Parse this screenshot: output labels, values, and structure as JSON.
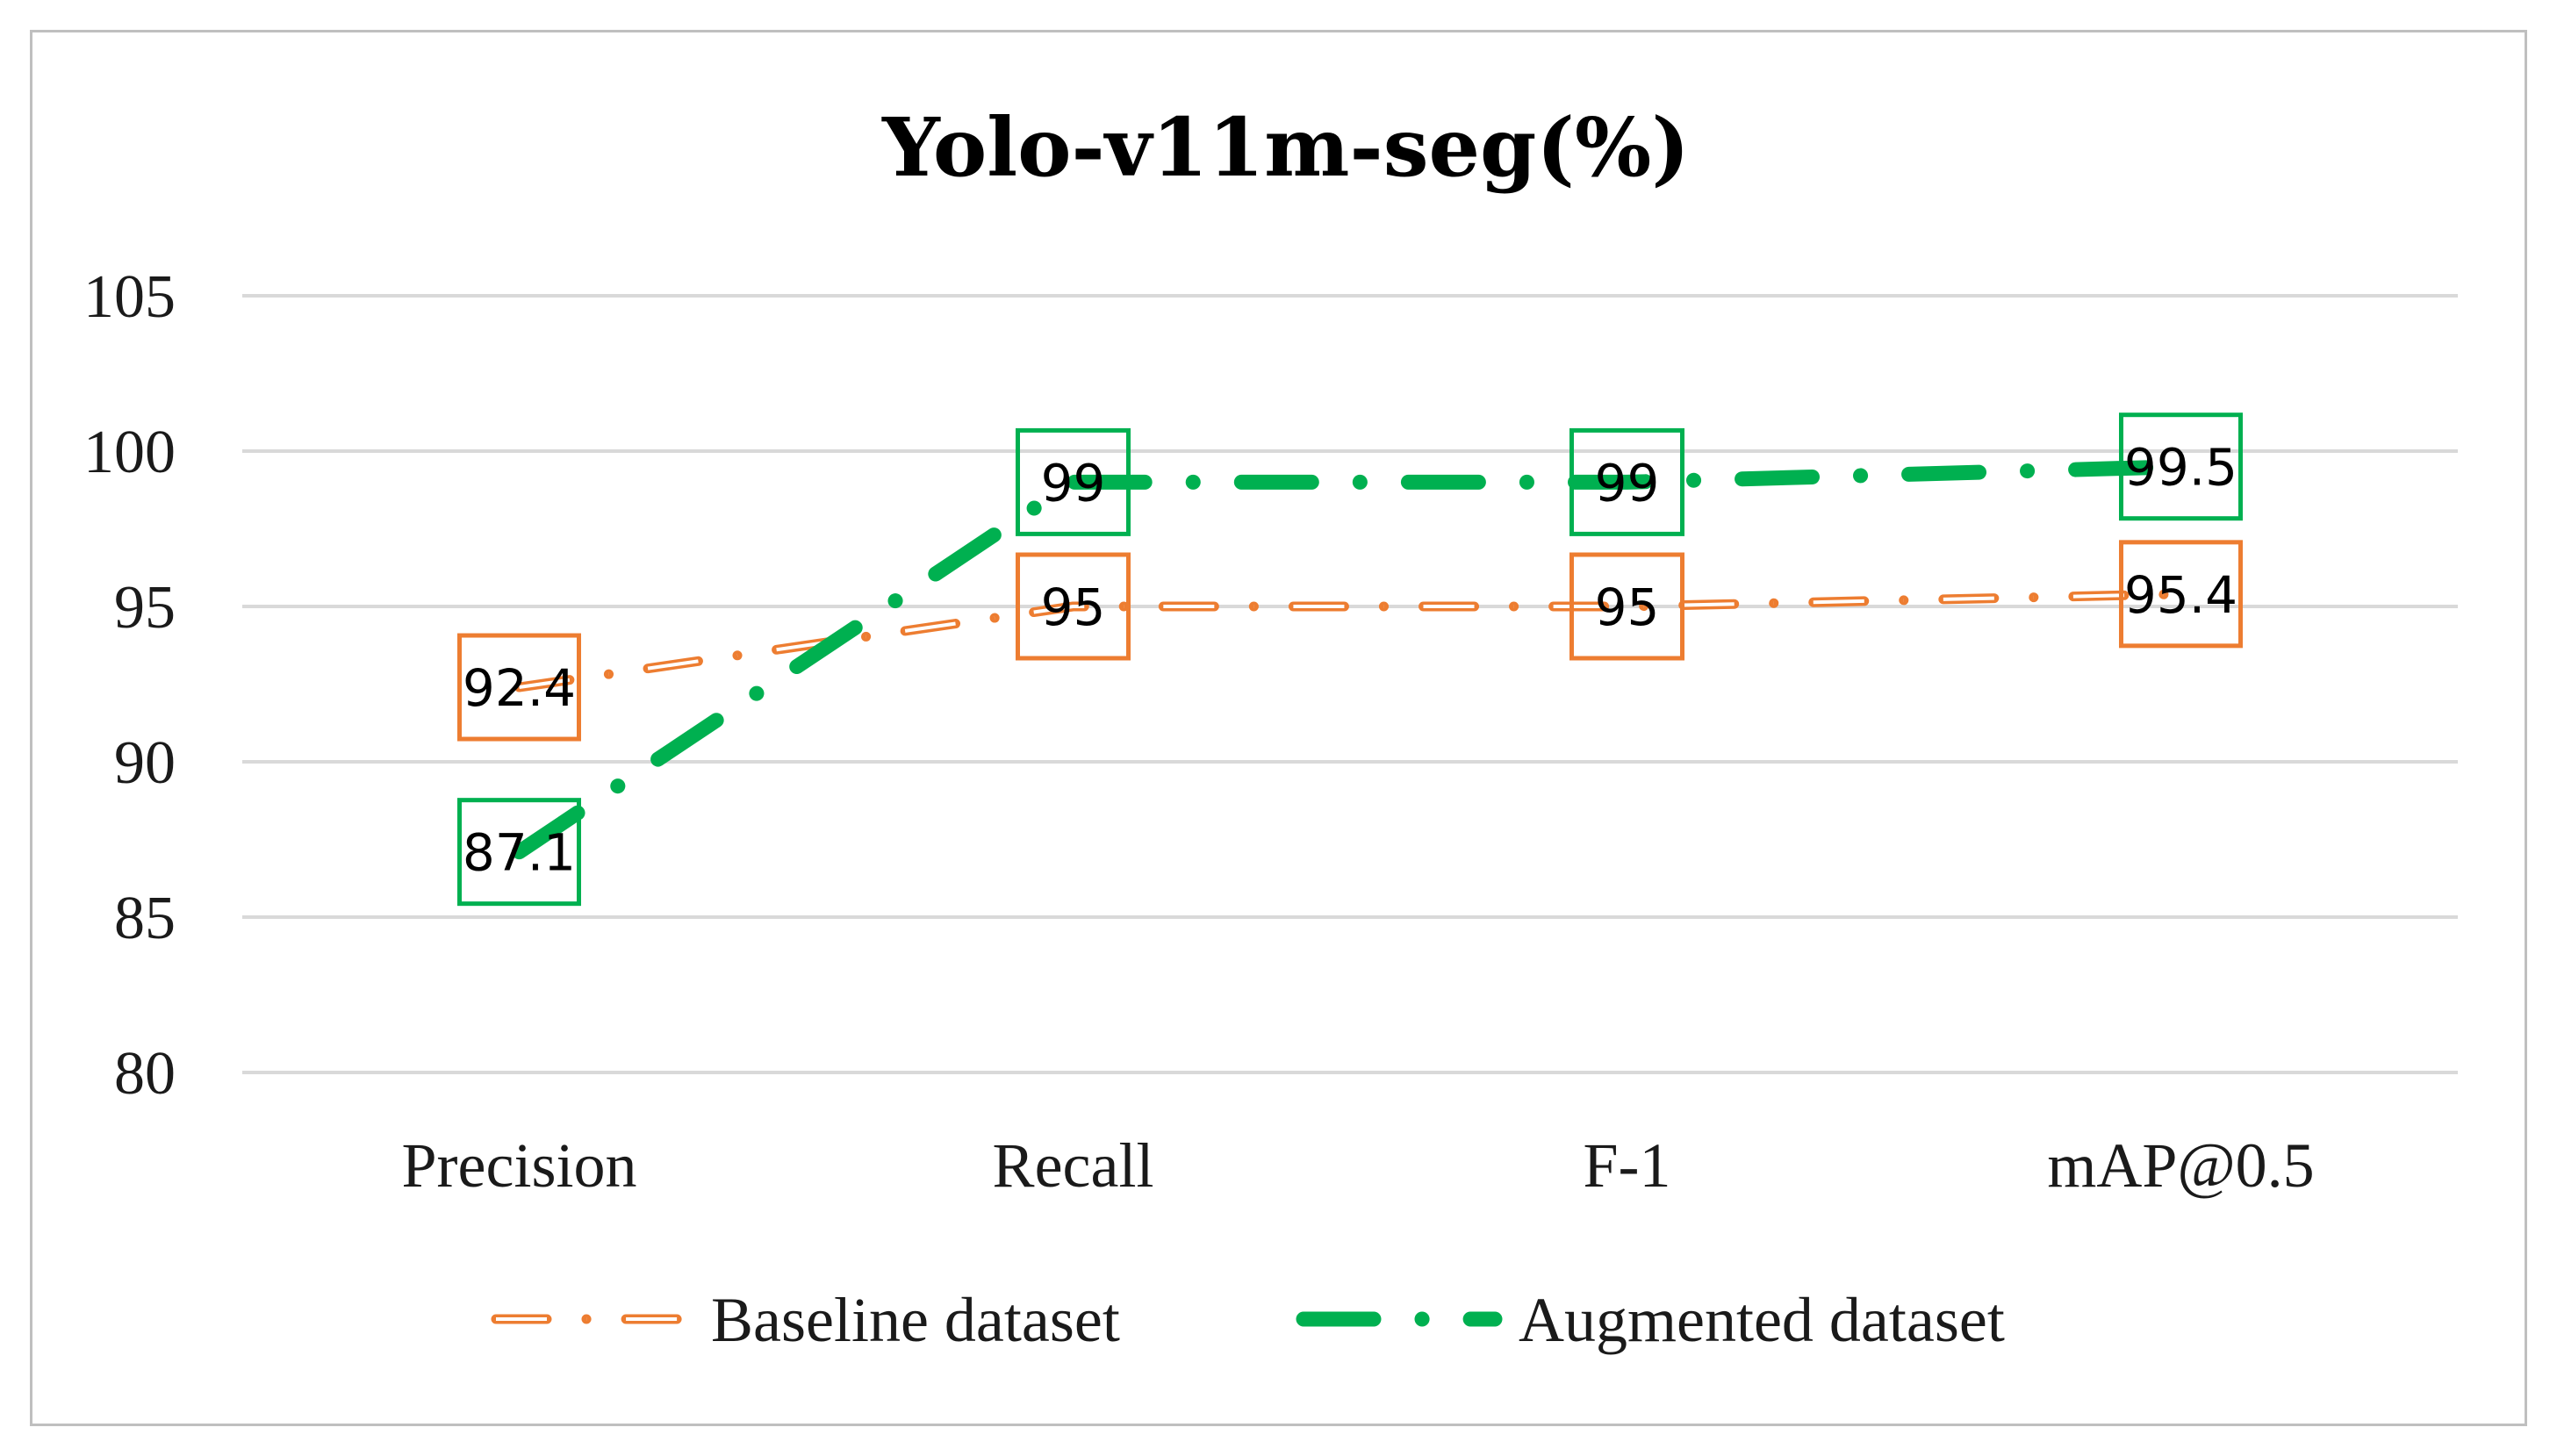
{
  "chart_data": {
    "type": "line",
    "title": "Yolo-v11m-seg(%)",
    "xlabel": "",
    "ylabel": "",
    "categories": [
      "Precision",
      "Recall",
      "F-1",
      "mAP@0.5"
    ],
    "ylim": [
      80,
      105
    ],
    "yticks": [
      80,
      85,
      90,
      95,
      100,
      105
    ],
    "grid": true,
    "legend_position": "bottom",
    "series": [
      {
        "name": "Baseline dataset",
        "values": [
          92.4,
          95,
          95,
          95.4
        ],
        "labels": [
          "92.4",
          "95",
          "95",
          "95.4"
        ],
        "color": "#ED7D31",
        "style": "dash-dot"
      },
      {
        "name": "Augmented dataset",
        "values": [
          87.1,
          99,
          99,
          99.5
        ],
        "labels": [
          "87.1",
          "99",
          "99",
          "99.5"
        ],
        "color": "#00B050",
        "style": "long-dash-dot"
      }
    ]
  }
}
